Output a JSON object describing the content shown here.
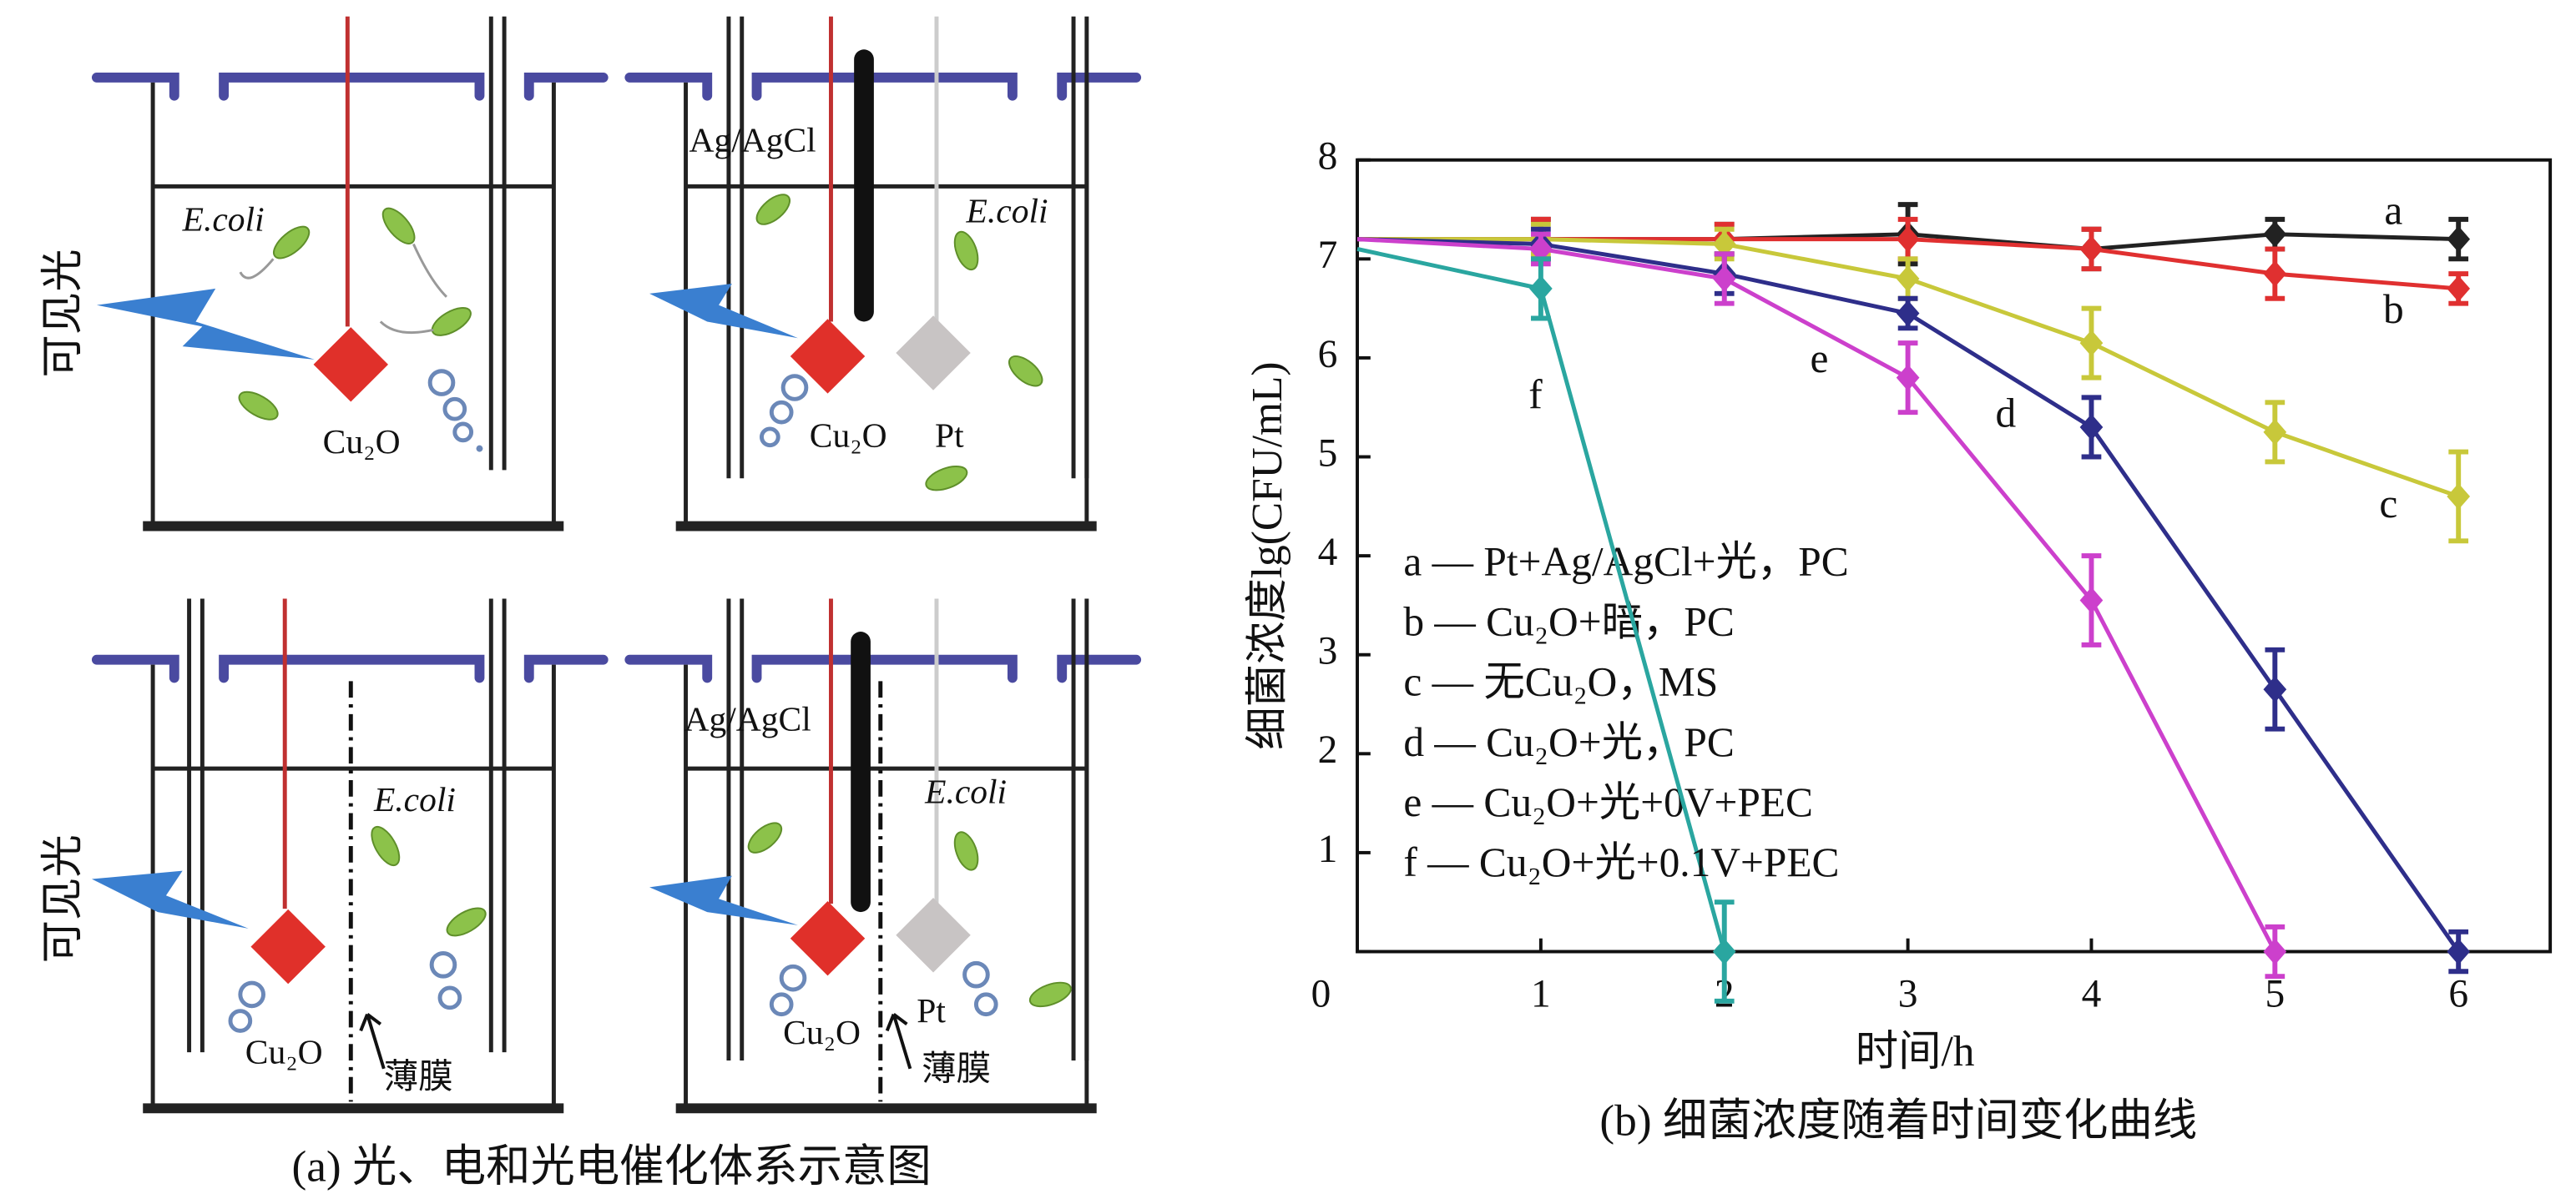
{
  "panel_a": {
    "caption": "(a) 光、电和光电催化体系示意图",
    "side_labels": [
      "可见光",
      "可见光"
    ],
    "ecoli": [
      "E.coli",
      "E.coli",
      "E.coli",
      "E.coli"
    ],
    "cu2o": [
      "Cu₂O",
      "Cu₂O",
      "Cu₂O",
      "Cu₂O"
    ],
    "pt": [
      "Pt",
      "Pt"
    ],
    "agagcl": [
      "Ag/AgCl",
      "Ag/AgCl"
    ],
    "membrane": [
      "薄膜",
      "薄膜"
    ]
  },
  "chart_data": {
    "type": "line",
    "title": "(b) 细菌浓度随着时间变化曲线",
    "xlabel": "时间/h",
    "ylabel": "细菌浓度lg(CFU/mL)",
    "x": [
      0,
      1,
      2,
      3,
      4,
      5,
      6
    ],
    "xlim": [
      0,
      6.5
    ],
    "ylim": [
      0,
      8
    ],
    "xticks": [
      1,
      2,
      3,
      4,
      5,
      6
    ],
    "yticks": [
      0,
      1,
      2,
      3,
      4,
      5,
      6,
      7,
      8
    ],
    "series": [
      {
        "name": "a — Pt+Ag/AgCl+光，PC",
        "curve_label": "a",
        "color": "#222222",
        "values": [
          7.2,
          7.2,
          7.2,
          7.25,
          7.1,
          7.25,
          7.2
        ],
        "errors": [
          null,
          0.2,
          0.15,
          0.3,
          0.2,
          0.15,
          0.2
        ]
      },
      {
        "name": "b — Cu₂O+暗，PC",
        "curve_label": "b",
        "color": "#e03030",
        "values": [
          7.2,
          7.2,
          7.2,
          7.2,
          7.1,
          6.85,
          6.7
        ],
        "errors": [
          null,
          0.2,
          0.15,
          0.2,
          0.2,
          0.25,
          0.15
        ]
      },
      {
        "name": "c — 无Cu₂O，MS",
        "curve_label": "c",
        "color": "#c8c83a",
        "values": [
          7.2,
          7.2,
          7.15,
          6.8,
          6.15,
          5.25,
          4.6
        ],
        "errors": [
          null,
          0.15,
          0.15,
          0.2,
          0.35,
          0.3,
          0.45
        ]
      },
      {
        "name": "d — Cu₂O+光，PC",
        "curve_label": "d",
        "color": "#2e2e8a",
        "values": [
          7.2,
          7.15,
          6.85,
          6.45,
          5.3,
          2.65,
          0
        ],
        "errors": [
          null,
          0.15,
          0.2,
          0.15,
          0.3,
          0.4,
          0.2
        ]
      },
      {
        "name": "e — Cu₂O+光+0V+PEC",
        "curve_label": "e",
        "color": "#cc40cc",
        "values": [
          7.2,
          7.1,
          6.8,
          5.8,
          3.55,
          0,
          null
        ],
        "errors": [
          null,
          0.15,
          0.25,
          0.35,
          0.45,
          0.25,
          null
        ]
      },
      {
        "name": "f — Cu₂O+光+0.1V+PEC",
        "curve_label": "f",
        "color": "#2aa6a0",
        "values": [
          7.1,
          6.7,
          0,
          null,
          null,
          null,
          null
        ],
        "errors": [
          null,
          0.3,
          0.5,
          null,
          null,
          null,
          null
        ]
      }
    ]
  }
}
